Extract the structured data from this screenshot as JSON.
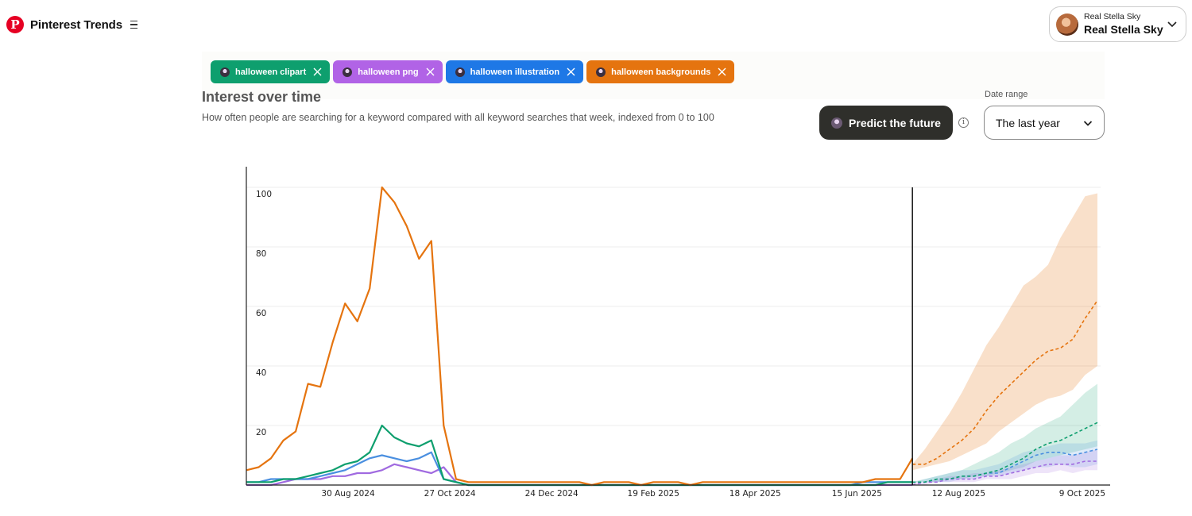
{
  "header": {
    "brand": "Pinterest Trends",
    "account": {
      "small_name": "Real Stella Sky",
      "name": "Real Stella Sky"
    }
  },
  "tags": [
    {
      "label": "halloween clipart",
      "color": "#0e9f6e"
    },
    {
      "label": "halloween png",
      "color": "#b163e6"
    },
    {
      "label": "halloween illustration",
      "color": "#1e78e6"
    },
    {
      "label": "halloween backgrounds",
      "color": "#e5740f"
    }
  ],
  "section": {
    "title": "Interest over time",
    "subtitle": "How often people are searching for a keyword compared with all keyword searches that week, indexed from 0 to 100"
  },
  "predict": {
    "label": "Predict the future",
    "info": "i"
  },
  "date_range": {
    "label": "Date range",
    "value": "The last year"
  },
  "chart_data": {
    "type": "line",
    "xlabel": "",
    "ylabel": "",
    "ylim": [
      0,
      100
    ],
    "yticks": [
      100,
      80,
      60,
      40,
      20
    ],
    "xticks": [
      "30 Aug 2024",
      "27 Oct 2024",
      "24 Dec 2024",
      "19 Feb 2025",
      "18 Apr 2025",
      "15 Jun 2025",
      "12 Aug 2025",
      "9 Oct 2025"
    ],
    "grid": true,
    "history_points": 55,
    "forecast_start_index": 55,
    "series": [
      {
        "name": "halloween backgrounds",
        "color": "#e5740f",
        "values": [
          5,
          6,
          9,
          15,
          18,
          34,
          33,
          48,
          61,
          55,
          66,
          100,
          95,
          87,
          76,
          82,
          20,
          2,
          1,
          1,
          1,
          1,
          1,
          1,
          1,
          1,
          1,
          1,
          0,
          1,
          1,
          1,
          0,
          1,
          1,
          1,
          0,
          1,
          1,
          1,
          1,
          1,
          1,
          1,
          1,
          1,
          1,
          1,
          1,
          1,
          1,
          2,
          2,
          2,
          9
        ],
        "forecast": [
          7,
          7,
          9,
          12,
          15,
          19,
          25,
          30,
          34,
          38,
          42,
          45,
          46,
          49,
          56,
          62
        ],
        "forecast_low": [
          5,
          6,
          7,
          8,
          10,
          12,
          14,
          18,
          21,
          24,
          27,
          29,
          30,
          32,
          37,
          40
        ],
        "forecast_high": [
          7,
          12,
          18,
          24,
          31,
          39,
          47,
          53,
          60,
          67,
          70,
          74,
          83,
          90,
          97,
          98
        ]
      },
      {
        "name": "halloween clipart",
        "color": "#0e9f6e",
        "values": [
          1,
          1,
          1,
          2,
          2,
          3,
          4,
          5,
          7,
          8,
          11,
          20,
          16,
          14,
          13,
          15,
          2,
          1,
          0,
          0,
          0,
          0,
          0,
          0,
          0,
          0,
          0,
          0,
          0,
          0,
          0,
          0,
          0,
          0,
          0,
          0,
          0,
          0,
          0,
          0,
          0,
          0,
          0,
          0,
          0,
          0,
          0,
          0,
          0,
          0,
          0,
          0,
          1,
          1,
          1
        ],
        "forecast": [
          1,
          1,
          2,
          2,
          3,
          3,
          4,
          5,
          7,
          9,
          12,
          14,
          15,
          17,
          19,
          21
        ],
        "forecast_low": [
          1,
          1,
          1,
          2,
          2,
          3,
          3,
          4,
          5,
          6,
          8,
          9,
          10,
          11,
          12,
          13
        ],
        "forecast_high": [
          1,
          2,
          3,
          4,
          5,
          7,
          9,
          11,
          14,
          16,
          19,
          21,
          23,
          27,
          31,
          34
        ]
      },
      {
        "name": "halloween illustration",
        "color": "#4a8fe0",
        "values": [
          1,
          1,
          2,
          2,
          2,
          2,
          3,
          4,
          5,
          7,
          9,
          10,
          9,
          8,
          9,
          11,
          2,
          1,
          0,
          0,
          0,
          0,
          0,
          0,
          0,
          0,
          0,
          0,
          0,
          0,
          0,
          0,
          0,
          0,
          0,
          0,
          0,
          0,
          0,
          0,
          0,
          0,
          0,
          0,
          0,
          0,
          0,
          0,
          0,
          0,
          1,
          1,
          1,
          1,
          1
        ],
        "forecast": [
          1,
          1,
          2,
          2,
          3,
          3,
          4,
          4,
          6,
          8,
          10,
          11,
          11,
          10,
          11,
          12
        ],
        "forecast_low": [
          1,
          1,
          1,
          1,
          2,
          2,
          3,
          3,
          4,
          5,
          6,
          6,
          7,
          6,
          6,
          7
        ],
        "forecast_high": [
          1,
          2,
          3,
          4,
          5,
          5,
          6,
          7,
          9,
          11,
          12,
          13,
          14,
          14,
          14,
          15
        ]
      },
      {
        "name": "halloween png",
        "color": "#a06ae0",
        "values": [
          0,
          0,
          0,
          1,
          2,
          2,
          2,
          3,
          3,
          4,
          4,
          5,
          7,
          6,
          5,
          4,
          6,
          1,
          0,
          0,
          0,
          0,
          0,
          0,
          0,
          0,
          0,
          0,
          0,
          0,
          0,
          0,
          0,
          0,
          0,
          0,
          0,
          0,
          0,
          0,
          0,
          0,
          0,
          0,
          0,
          0,
          0,
          0,
          0,
          0,
          0,
          0,
          0,
          0,
          0
        ],
        "forecast": [
          0,
          1,
          1,
          2,
          2,
          2,
          3,
          3,
          4,
          5,
          6,
          7,
          7,
          7,
          8,
          8
        ],
        "forecast_low": [
          0,
          0,
          1,
          1,
          1,
          1,
          2,
          2,
          2,
          3,
          4,
          4,
          5,
          4,
          5,
          5
        ],
        "forecast_high": [
          1,
          1,
          2,
          3,
          3,
          4,
          4,
          5,
          6,
          7,
          8,
          9,
          10,
          10,
          11,
          12
        ]
      }
    ]
  }
}
